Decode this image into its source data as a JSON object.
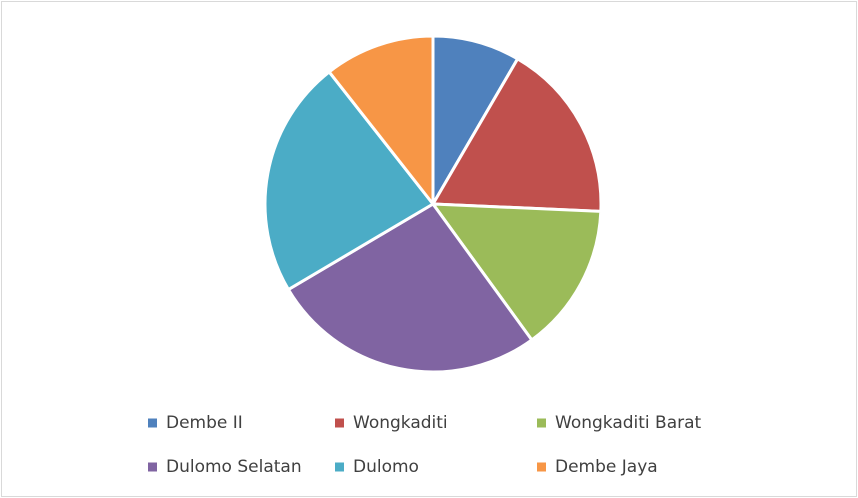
{
  "chart_data": {
    "type": "pie",
    "categories": [
      "Dembe II",
      "Wongkaditi",
      "Wongkaditi Barat",
      "Dulomo Selatan",
      "Dulomo",
      "Dembe Jaya"
    ],
    "values": [
      8.4,
      17.3,
      14.3,
      26.5,
      22.9,
      10.6
    ],
    "colors": [
      "#4f81bd",
      "#c0504d",
      "#9bbb59",
      "#8064a2",
      "#4bacc6",
      "#f79646"
    ],
    "legend": "bottom"
  }
}
